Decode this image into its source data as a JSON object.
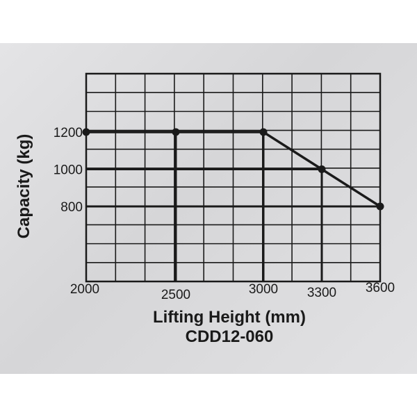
{
  "chart_data": {
    "type": "line",
    "xlabel": "Lifting Height (mm)",
    "ylabel": "Capacity (kg)",
    "subtitle": "CDD12-060",
    "x_ticks": [
      "2000",
      "2500",
      "3000",
      "3300",
      "3600"
    ],
    "y_ticks": [
      "1200",
      "1000",
      "800"
    ],
    "series": [
      {
        "x": [
          2000,
          2500,
          3000,
          3300,
          3600
        ],
        "y": [
          1200,
          1200,
          1200,
          1000,
          800
        ]
      }
    ],
    "grid": true,
    "grid_columns": 10,
    "grid_rows": 11,
    "line_color": "#1a1a1a",
    "background_color": "#dcdcde"
  }
}
